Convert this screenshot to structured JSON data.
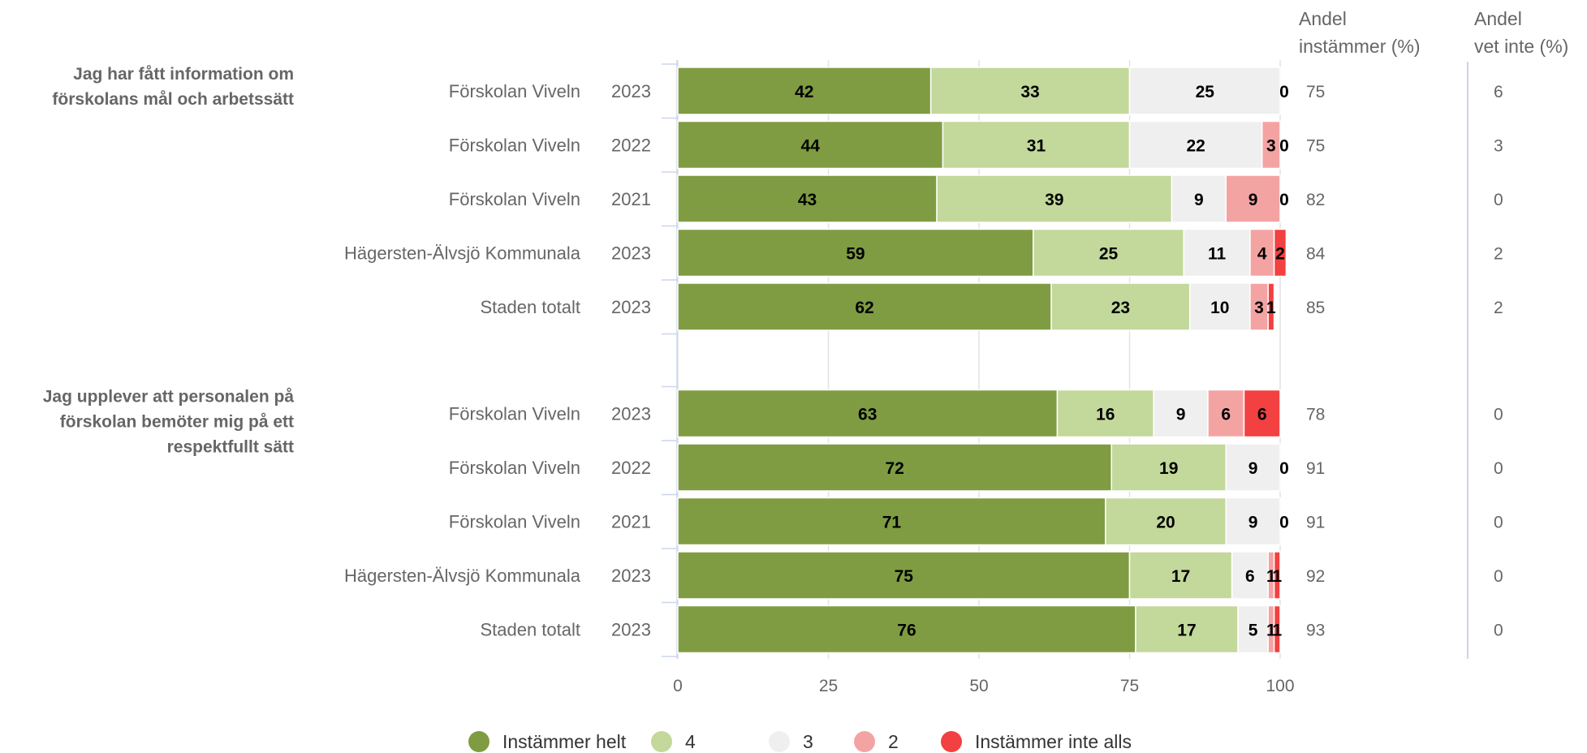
{
  "chart_data": {
    "type": "bar",
    "orientation": "horizontal",
    "stacked": true,
    "xlim": [
      0,
      100
    ],
    "xticks": [
      "0",
      "25",
      "50",
      "75",
      "100"
    ],
    "grid": true,
    "legend_position": "bottom",
    "col_headers": {
      "andel_instammer": [
        "Andel",
        "instämmer (%)"
      ],
      "andel_vet_inte": [
        "Andel",
        "vet inte (%)"
      ]
    },
    "series": [
      {
        "name": "Instämmer helt",
        "color": "#7f9c42"
      },
      {
        "name": "4",
        "color": "#c3d89b"
      },
      {
        "name": "3",
        "color": "#efefef"
      },
      {
        "name": "2",
        "color": "#f4a3a3"
      },
      {
        "name": "Instämmer inte alls",
        "color": "#f34040"
      }
    ],
    "groups": [
      {
        "question": [
          "Jag har fått information om",
          "förskolans mål och arbetssätt"
        ],
        "rows": [
          {
            "unit": "Förskolan Viveln",
            "year": "2023",
            "values": [
              42,
              33,
              25,
              0,
              0
            ],
            "labels": [
              "42",
              "33",
              "25",
              "0",
              ""
            ],
            "andel": "75",
            "vet_inte": "6"
          },
          {
            "unit": "Förskolan Viveln",
            "year": "2022",
            "values": [
              44,
              31,
              22,
              3,
              0
            ],
            "labels": [
              "44",
              "31",
              "22",
              "3",
              "0"
            ],
            "andel": "75",
            "vet_inte": "3"
          },
          {
            "unit": "Förskolan Viveln",
            "year": "2021",
            "values": [
              43,
              39,
              9,
              9,
              0
            ],
            "labels": [
              "43",
              "39",
              "9",
              "9",
              "0"
            ],
            "andel": "82",
            "vet_inte": "0"
          },
          {
            "unit": "Hägersten-Älvsjö Kommunala",
            "year": "2023",
            "values": [
              59,
              25,
              11,
              4,
              2
            ],
            "labels": [
              "59",
              "25",
              "11",
              "4",
              "2"
            ],
            "andel": "84",
            "vet_inte": "2"
          },
          {
            "unit": "Staden totalt",
            "year": "2023",
            "values": [
              62,
              23,
              10,
              3,
              1
            ],
            "labels": [
              "62",
              "23",
              "10",
              "3",
              "1"
            ],
            "andel": "85",
            "vet_inte": "2"
          }
        ]
      },
      {
        "question": [
          "Jag upplever att personalen på",
          "förskolan bemöter mig på ett",
          "respektfullt sätt"
        ],
        "rows": [
          {
            "unit": "Förskolan Viveln",
            "year": "2023",
            "values": [
              63,
              16,
              9,
              6,
              6
            ],
            "labels": [
              "63",
              "16",
              "9",
              "6",
              "6"
            ],
            "andel": "78",
            "vet_inte": "0"
          },
          {
            "unit": "Förskolan Viveln",
            "year": "2022",
            "values": [
              72,
              19,
              9,
              0,
              0
            ],
            "labels": [
              "72",
              "19",
              "9",
              "0",
              ""
            ],
            "andel": "91",
            "vet_inte": "0"
          },
          {
            "unit": "Förskolan Viveln",
            "year": "2021",
            "values": [
              71,
              20,
              9,
              0,
              0
            ],
            "labels": [
              "71",
              "20",
              "9",
              "0",
              ""
            ],
            "andel": "91",
            "vet_inte": "0"
          },
          {
            "unit": "Hägersten-Älvsjö Kommunala",
            "year": "2023",
            "values": [
              75,
              17,
              6,
              1,
              1
            ],
            "labels": [
              "75",
              "17",
              "6",
              "1",
              "1"
            ],
            "andel": "92",
            "vet_inte": "0"
          },
          {
            "unit": "Staden totalt",
            "year": "2023",
            "values": [
              76,
              17,
              5,
              1,
              1
            ],
            "labels": [
              "76",
              "17",
              "5",
              "1",
              "1"
            ],
            "andel": "93",
            "vet_inte": "0"
          }
        ]
      }
    ]
  }
}
